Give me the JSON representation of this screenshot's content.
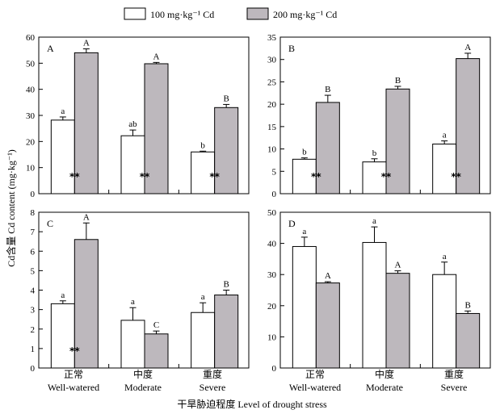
{
  "legend": {
    "series_1": "100 mg·kg⁻¹ Cd",
    "series_2": "200 mg·kg⁻¹ Cd"
  },
  "colors": {
    "series_1": "#ffffff",
    "series_2": "#bdb8bd",
    "stroke": "#000000"
  },
  "ylabel": "Cd含量 Cd content (mg·kg⁻¹)",
  "xlabel": "干旱胁迫程度 Level of drought stress",
  "categories_cn": [
    "正常",
    "中度",
    "重度"
  ],
  "categories_en": [
    "Well-watered",
    "Moderate",
    "Severe"
  ],
  "chart_data": [
    {
      "type": "bar",
      "panel": "A",
      "ylim": [
        0,
        60
      ],
      "yticks": [
        0,
        10,
        20,
        30,
        40,
        50,
        60
      ],
      "series": [
        {
          "name": "100 mg·kg⁻¹ Cd",
          "values": [
            28.2,
            22.2,
            16.0
          ],
          "errors": [
            1.2,
            2.2,
            0.3
          ],
          "labels": [
            "a",
            "ab",
            "b"
          ]
        },
        {
          "name": "200 mg·kg⁻¹ Cd",
          "values": [
            54.0,
            49.8,
            33.0
          ],
          "errors": [
            1.5,
            0.5,
            1.2
          ],
          "labels": [
            "A",
            "A",
            "B"
          ]
        }
      ],
      "annotations": [
        "**",
        "**",
        "**"
      ]
    },
    {
      "type": "bar",
      "panel": "B",
      "ylim": [
        0,
        35
      ],
      "yticks": [
        0,
        5,
        10,
        15,
        20,
        25,
        30,
        35
      ],
      "series": [
        {
          "name": "100 mg·kg⁻¹ Cd",
          "values": [
            7.7,
            7.1,
            11.1
          ],
          "errors": [
            0.3,
            0.7,
            0.7
          ],
          "labels": [
            "b",
            "b",
            "a"
          ]
        },
        {
          "name": "200 mg·kg⁻¹ Cd",
          "values": [
            20.4,
            23.4,
            30.2
          ],
          "errors": [
            1.6,
            0.6,
            1.2
          ],
          "labels": [
            "B",
            "B",
            "A"
          ]
        }
      ],
      "annotations": [
        "**",
        "**",
        "**"
      ]
    },
    {
      "type": "bar",
      "panel": "C",
      "ylim": [
        0,
        8
      ],
      "yticks": [
        0,
        1,
        2,
        3,
        4,
        5,
        6,
        7,
        8
      ],
      "series": [
        {
          "name": "100 mg·kg⁻¹ Cd",
          "values": [
            3.3,
            2.45,
            2.85
          ],
          "errors": [
            0.15,
            0.65,
            0.5
          ],
          "labels": [
            "a",
            "a",
            "a"
          ]
        },
        {
          "name": "200 mg·kg⁻¹ Cd",
          "values": [
            6.6,
            1.75,
            3.75
          ],
          "errors": [
            0.85,
            0.15,
            0.25
          ],
          "labels": [
            "A",
            "C",
            "B"
          ]
        }
      ],
      "annotations": [
        "**",
        "",
        ""
      ]
    },
    {
      "type": "bar",
      "panel": "D",
      "ylim": [
        0,
        50
      ],
      "yticks": [
        0,
        10,
        20,
        30,
        40,
        50
      ],
      "series": [
        {
          "name": "100 mg·kg⁻¹ Cd",
          "values": [
            39.0,
            40.3,
            30.0
          ],
          "errors": [
            3.0,
            5.0,
            4.0
          ],
          "labels": [
            "a",
            "a",
            "a"
          ]
        },
        {
          "name": "200 mg·kg⁻¹ Cd",
          "values": [
            27.3,
            30.4,
            17.5
          ],
          "errors": [
            0.4,
            0.8,
            0.8
          ],
          "labels": [
            "A",
            "A",
            "B"
          ]
        }
      ],
      "annotations": [
        "",
        "",
        ""
      ]
    }
  ]
}
